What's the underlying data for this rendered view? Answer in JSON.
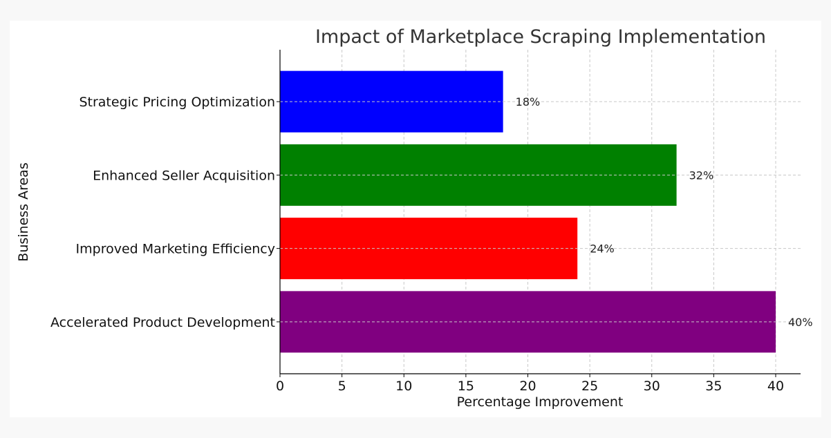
{
  "chart_data": {
    "type": "bar",
    "orientation": "horizontal",
    "title": "Impact of Marketplace Scraping Implementation",
    "xlabel": "Percentage Improvement",
    "ylabel": "Business Areas",
    "xlim": [
      0,
      42
    ],
    "xticks": [
      0,
      5,
      10,
      15,
      20,
      25,
      30,
      35,
      40
    ],
    "grid": true,
    "categories": [
      "Accelerated Product Development",
      "Improved Marketing Efficiency",
      "Enhanced Seller Acquisition",
      "Strategic Pricing Optimization"
    ],
    "values": [
      40,
      24,
      32,
      18
    ],
    "data_labels": [
      "40%",
      "24%",
      "32%",
      "18%"
    ],
    "colors": [
      "#800080",
      "#ff0000",
      "#008000",
      "#0000ff"
    ]
  }
}
